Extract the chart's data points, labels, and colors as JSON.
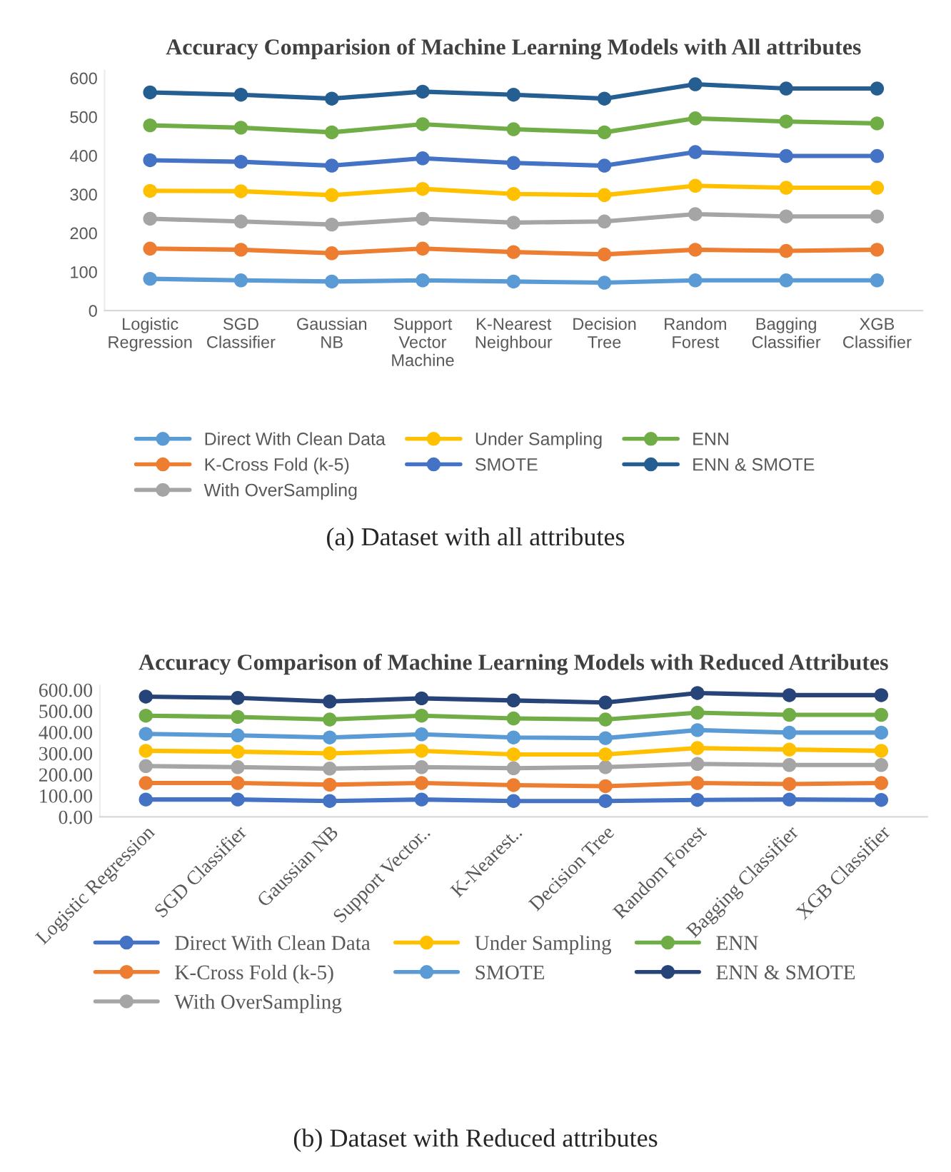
{
  "chart_data": [
    {
      "type": "line",
      "title": "Accuracy Comparision of Machine Learning Models with All attributes",
      "categories": [
        "Logistic\nRegression",
        "SGD\nClassifier",
        "Gaussian\nNB",
        "Support\nVector\nMachine",
        "K-Nearest\nNeighbour",
        "Decision\nTree",
        "Random\nForest",
        "Bagging\nClassifier",
        "XGB\nClassifier"
      ],
      "series": [
        {
          "name": "Direct With Clean Data",
          "color": "#5b9bd5",
          "values": [
            82,
            78,
            75,
            78,
            75,
            72,
            78,
            78,
            78
          ]
        },
        {
          "name": "K-Cross Fold (k-5)",
          "color": "#ed7d31",
          "values": [
            160,
            157,
            148,
            160,
            151,
            145,
            157,
            154,
            157
          ]
        },
        {
          "name": "With OverSampling",
          "color": "#a5a5a5",
          "values": [
            237,
            230,
            222,
            237,
            227,
            230,
            249,
            243,
            243
          ]
        },
        {
          "name": "Under Sampling",
          "color": "#ffc000",
          "values": [
            309,
            308,
            298,
            314,
            301,
            298,
            322,
            317,
            317
          ]
        },
        {
          "name": "SMOTE",
          "color": "#4472c4",
          "values": [
            388,
            384,
            374,
            393,
            381,
            374,
            409,
            399,
            399
          ]
        },
        {
          "name": "ENN",
          "color": "#70ad47",
          "values": [
            478,
            472,
            460,
            481,
            468,
            460,
            496,
            488,
            483
          ]
        },
        {
          "name": "ENN & SMOTE",
          "color": "#255e91",
          "values": [
            563,
            557,
            547,
            565,
            557,
            547,
            584,
            573,
            573
          ]
        }
      ],
      "ylim": [
        0,
        620
      ],
      "yticks": [
        0,
        100,
        200,
        300,
        400,
        500,
        600
      ],
      "grid": false,
      "legend": "bottom",
      "marker": "circle",
      "line_style": "solid",
      "annotations": [
        "(a) Dataset with all attributes"
      ]
    },
    {
      "type": "line",
      "title": "Accuracy Comparison of Machine Learning Models with Reduced Attributes",
      "categories": [
        "Logistic Regression",
        "SGD Classifier",
        "Gaussian NB",
        "Support Vector..",
        "K-Nearest..",
        "Decision Tree",
        "Random Forest",
        "Bagging Classifier",
        "XGB Classifier"
      ],
      "series": [
        {
          "name": "Direct With Clean Data",
          "color": "#4472c4",
          "values": [
            82,
            82,
            75,
            82,
            75,
            75,
            80,
            82,
            80
          ]
        },
        {
          "name": "K-Cross Fold (k-5)",
          "color": "#ed7d31",
          "values": [
            160,
            160,
            152,
            160,
            150,
            145,
            160,
            155,
            160
          ]
        },
        {
          "name": "With OverSampling",
          "color": "#a5a5a5",
          "values": [
            240,
            235,
            228,
            235,
            230,
            235,
            250,
            245,
            245
          ]
        },
        {
          "name": "Under Sampling",
          "color": "#ffc000",
          "values": [
            312,
            308,
            300,
            312,
            295,
            295,
            325,
            318,
            312
          ]
        },
        {
          "name": "SMOTE",
          "color": "#5b9bd5",
          "values": [
            392,
            385,
            375,
            390,
            375,
            372,
            410,
            398,
            398
          ]
        },
        {
          "name": "ENN",
          "color": "#70ad47",
          "values": [
            478,
            472,
            460,
            478,
            465,
            460,
            492,
            482,
            482
          ]
        },
        {
          "name": "ENN & SMOTE",
          "color": "#264478",
          "values": [
            568,
            562,
            545,
            560,
            550,
            540,
            585,
            575,
            575
          ]
        }
      ],
      "ylim": [
        0,
        620
      ],
      "yticks": [
        {
          "value": 0,
          "label": "0.00"
        },
        {
          "value": 100,
          "label": "100.00"
        },
        {
          "value": 200,
          "label": "200.00"
        },
        {
          "value": 300,
          "label": "300.00"
        },
        {
          "value": 400,
          "label": "400.00"
        },
        {
          "value": 500,
          "label": "500.00"
        },
        {
          "value": 600,
          "label": "600.00"
        }
      ],
      "grid": false,
      "legend": "bottom",
      "marker": "circle",
      "line_style": "solid",
      "annotations": [
        "(b) Dataset with Reduced attributes"
      ]
    }
  ]
}
